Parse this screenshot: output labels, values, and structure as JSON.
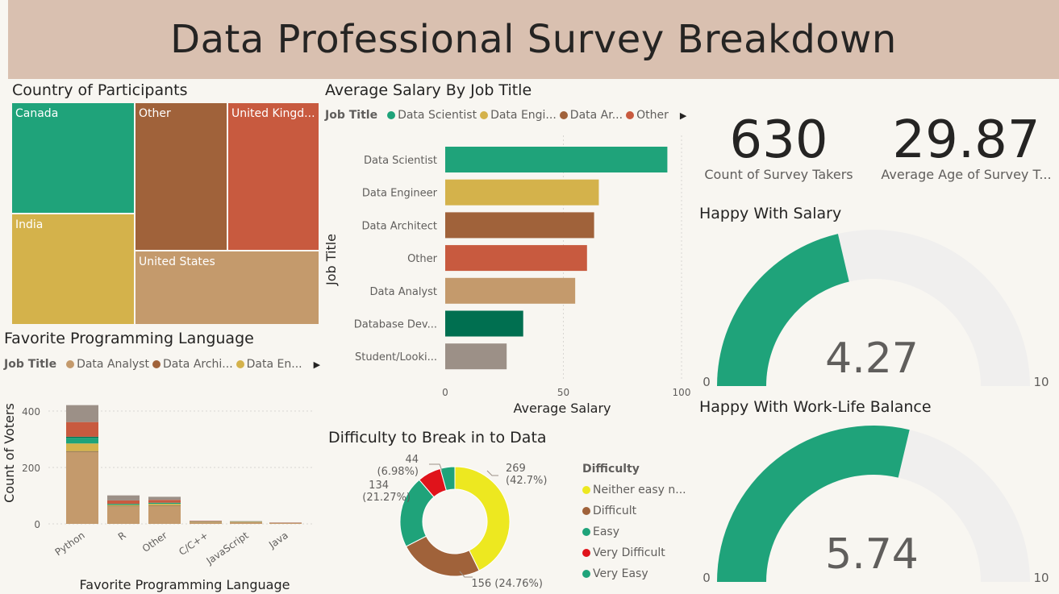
{
  "header": {
    "title": "Data Professional Survey Breakdown"
  },
  "colors": {
    "teal": "#1fa37a",
    "gold": "#d4b24b",
    "brown": "#a0623a",
    "red_orange": "#c85a3f",
    "tan": "#c49a6c",
    "dark_green": "#006f50",
    "gray": "#9c9087",
    "yellow": "#ede820",
    "red": "#e0131b",
    "light_gray": "#f0efee"
  },
  "country": {
    "title": "Country of Participants",
    "labels": [
      "Canada",
      "Other",
      "United Kingd...",
      "India",
      "United States"
    ]
  },
  "salary": {
    "title": "Average Salary By Job Title",
    "legend_title": "Job Title",
    "legend_items": [
      "Data Scientist",
      "Data Engi...",
      "Data Ar...",
      "Other"
    ]
  },
  "kpis": {
    "count_value": "630",
    "count_label": "Count of Survey Takers",
    "age_value": "29.87",
    "age_label": "Average Age of Survey T..."
  },
  "gauge_salary": {
    "title": "Happy With Salary",
    "value_text": "4.27",
    "min": "0",
    "max": "10"
  },
  "gauge_worklife": {
    "title": "Happy With Work-Life Balance",
    "value_text": "5.74",
    "min": "0",
    "max": "10"
  },
  "language": {
    "title": "Favorite Programming Language",
    "legend_title": "Job Title",
    "legend_items": [
      "Data Analyst",
      "Data Archi...",
      "Data En..."
    ]
  },
  "difficulty": {
    "title": "Difficulty to Break in to Data",
    "legend_title": "Difficulty",
    "legend_items": [
      "Neither easy n...",
      "Difficult",
      "Easy",
      "Very Difficult",
      "Very Easy"
    ],
    "labels": {
      "neither": [
        "269",
        "(42.7%)"
      ],
      "difficult": [
        "156 (24.76%)"
      ],
      "easy": [
        "134",
        "(21.27%)"
      ],
      "very_difficult": [
        "44",
        "(6.98%)"
      ]
    }
  },
  "chart_data": [
    {
      "type": "bar",
      "orientation": "horizontal",
      "title": "Average Salary By Job Title",
      "xlabel": "Average Salary",
      "ylabel": "Job Title",
      "categories": [
        "Data Scientist",
        "Data Engineer",
        "Data Architect",
        "Other",
        "Data Analyst",
        "Database Dev...",
        "Student/Looki..."
      ],
      "values": [
        94,
        65,
        63,
        60,
        55,
        33,
        26
      ],
      "xlim": [
        0,
        100
      ],
      "xticks": [
        "0",
        "50",
        "100"
      ]
    },
    {
      "type": "bar",
      "stacked": true,
      "title": "Favorite Programming Language",
      "xlabel": "Favorite Programming Language",
      "ylabel": "Count of Voters",
      "categories": [
        "Python",
        "R",
        "Other",
        "C/C++",
        "JavaScript",
        "Java"
      ],
      "ylim": [
        0,
        430
      ],
      "yticks": [
        "0",
        "200",
        "400"
      ],
      "series": [
        {
          "name": "Data Analyst",
          "values": [
            255,
            62,
            64,
            6,
            6,
            3
          ]
        },
        {
          "name": "",
          "values": [
            3,
            2,
            2,
            0,
            0,
            0
          ]
        },
        {
          "name": "Data En...",
          "values": [
            27,
            3,
            5,
            1,
            1,
            0
          ]
        },
        {
          "name": "",
          "values": [
            20,
            4,
            4,
            1,
            1,
            0
          ]
        },
        {
          "name": "",
          "values": [
            4,
            0,
            0,
            0,
            0,
            0
          ]
        },
        {
          "name": "",
          "values": [
            52,
            12,
            10,
            2,
            1,
            1
          ]
        },
        {
          "name": "",
          "values": [
            60,
            18,
            11,
            1,
            1,
            1
          ]
        }
      ]
    },
    {
      "type": "pie",
      "donut": true,
      "title": "Difficulty to Break in to Data",
      "categories": [
        "Neither easy n...",
        "Difficult",
        "Easy",
        "Very Difficult",
        "Very Easy"
      ],
      "values": [
        269,
        156,
        134,
        44,
        27
      ],
      "percents": [
        42.7,
        24.76,
        21.27,
        6.98,
        4.29
      ]
    },
    {
      "type": "treemap",
      "title": "Country of Participants",
      "categories": [
        "Canada",
        "India",
        "Other",
        "United Kingd...",
        "United States"
      ],
      "values": [
        0.18,
        0.18,
        0.17,
        0.14,
        0.14
      ]
    },
    {
      "type": "gauge",
      "title": "Happy With Salary",
      "value": 4.27,
      "min": 0,
      "max": 10
    },
    {
      "type": "gauge",
      "title": "Happy With Work-Life Balance",
      "value": 5.74,
      "min": 0,
      "max": 10
    }
  ]
}
